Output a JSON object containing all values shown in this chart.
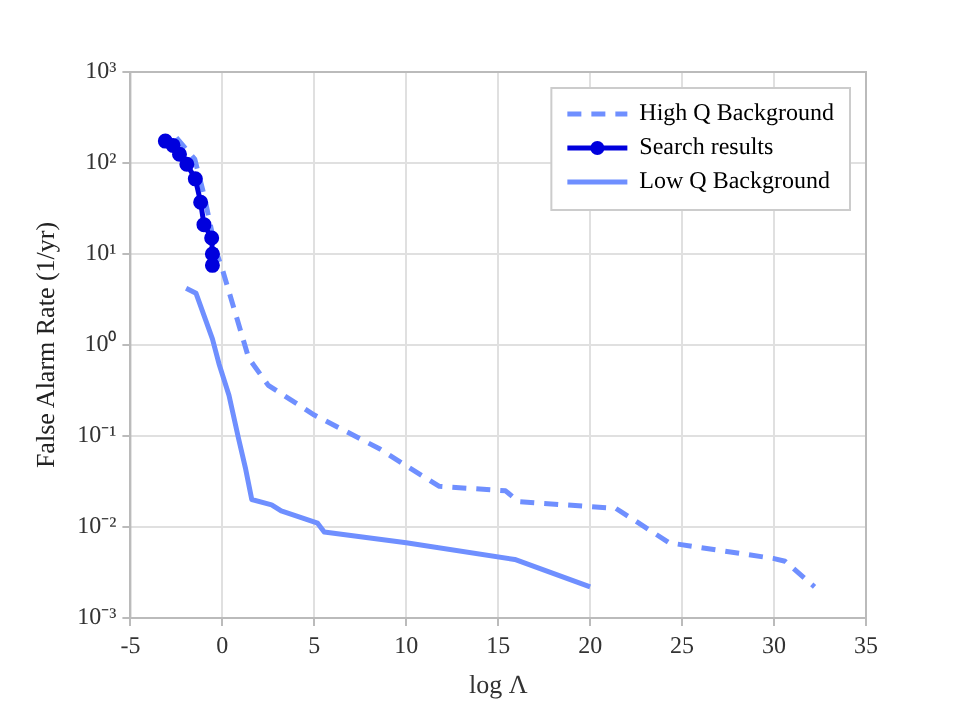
{
  "chart_data": {
    "type": "line",
    "xlabel": "log Λ",
    "ylabel": "False Alarm Rate (1/yr)",
    "log": "y",
    "grid": true,
    "legend": "top right",
    "xlim": [
      -5,
      35
    ],
    "xticks": [
      -5,
      0,
      5,
      10,
      15,
      20,
      25,
      30,
      35
    ],
    "ylim": [
      0.001,
      1000
    ],
    "yticks": [
      {
        "value": 0.001,
        "label": "10⁻³"
      },
      {
        "value": 0.01,
        "label": "10⁻²"
      },
      {
        "value": 0.1,
        "label": "10⁻¹"
      },
      {
        "value": 1,
        "label": "10⁰"
      },
      {
        "value": 10,
        "label": "10¹"
      },
      {
        "value": 100,
        "label": "10²"
      },
      {
        "value": 1000,
        "label": "10³"
      }
    ],
    "series": [
      {
        "name": "High Q Background",
        "color": "#6f8fff",
        "line_style": "dashed",
        "marker": "none",
        "x": [
          -2.5,
          -1.5,
          -1,
          -0.36,
          0,
          1.43,
          2.5,
          5,
          8.57,
          10,
          11.8,
          15.4,
          16.1,
          21.4,
          22.1,
          24.3,
          30,
          30.6,
          32.2
        ],
        "values": [
          190,
          110,
          45,
          11,
          6.8,
          0.72,
          0.36,
          0.17,
          0.072,
          0.047,
          0.028,
          0.025,
          0.019,
          0.016,
          0.013,
          0.0067,
          0.0045,
          0.0042,
          0.0022
        ]
      },
      {
        "name": "Search results",
        "color": "#0000dd",
        "line_style": "solid",
        "marker": "circle",
        "x": [
          -3.1,
          -2.68,
          -2.33,
          -1.93,
          -1.47,
          -1.18,
          -1,
          -0.58,
          -0.54,
          -0.54
        ],
        "values": [
          174,
          156,
          125,
          97,
          67,
          37,
          21,
          15,
          10,
          7.5
        ]
      },
      {
        "name": "Low Q Background",
        "color": "#6f8fff",
        "line_style": "solid",
        "marker": "none",
        "x": [
          -1.97,
          -1.43,
          -0.54,
          -0.18,
          0.36,
          0.89,
          1.25,
          1.6,
          2.68,
          3.2,
          5.18,
          5.54,
          10,
          15.9,
          20
        ],
        "values": [
          4.2,
          3.7,
          1.17,
          0.62,
          0.28,
          0.092,
          0.045,
          0.02,
          0.0175,
          0.015,
          0.011,
          0.0088,
          0.0067,
          0.0044,
          0.0022
        ]
      }
    ]
  }
}
